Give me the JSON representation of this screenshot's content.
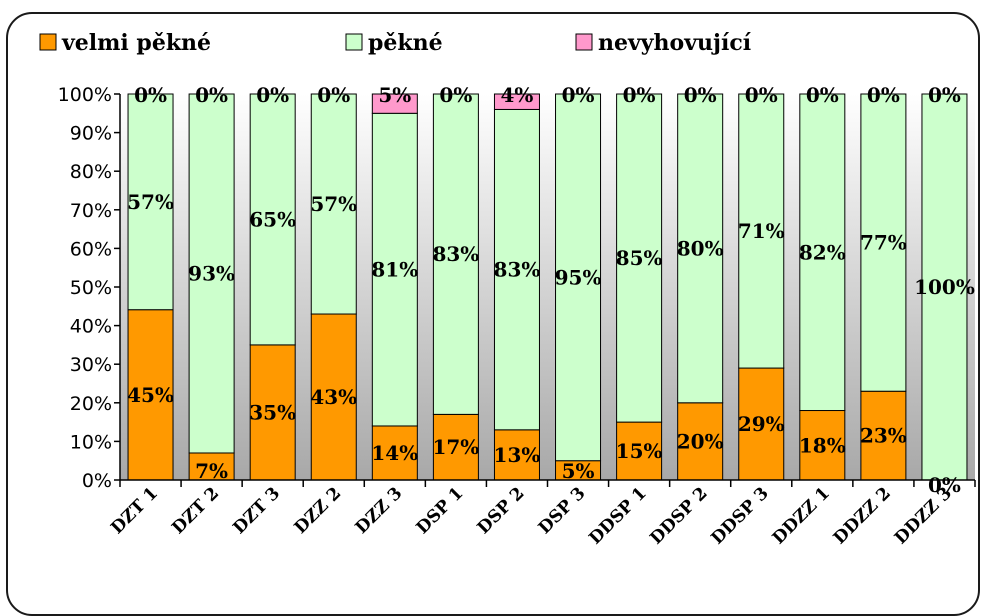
{
  "chart_data": {
    "type": "bar",
    "stacked": true,
    "percent_stacked": true,
    "categories": [
      "DZT 1",
      "DZT 2",
      "DZT 3",
      "DZZ 2",
      "DZZ 3",
      "DSP 1",
      "DSP 2",
      "DSP 3",
      "DDSP 1",
      "DDSP 2",
      "DDSP 3",
      "DDZZ 1",
      "DDZZ 2",
      "DDZZ 3"
    ],
    "series": [
      {
        "name": "velmi pěkné",
        "color": "#ff9900",
        "values": [
          45,
          7,
          35,
          43,
          14,
          17,
          13,
          5,
          15,
          20,
          29,
          18,
          23,
          0
        ]
      },
      {
        "name": "pěkné",
        "color": "#ccffcc",
        "values": [
          57,
          93,
          65,
          57,
          81,
          83,
          83,
          95,
          85,
          80,
          71,
          82,
          77,
          100
        ]
      },
      {
        "name": "nevyhovující",
        "color": "#ff99cc",
        "values": [
          0,
          0,
          0,
          0,
          5,
          0,
          4,
          0,
          0,
          0,
          0,
          0,
          0,
          0
        ]
      }
    ],
    "data_labels": {
      "velmi pěkné": [
        "45%",
        "7%",
        "35%",
        "43%",
        "14%",
        "17%",
        "13%",
        "5%",
        "15%",
        "20%",
        "29%",
        "18%",
        "23%",
        "0%"
      ],
      "pěkné": [
        "57%",
        "93%",
        "65%",
        "57%",
        "81%",
        "83%",
        "83%",
        "95%",
        "85%",
        "80%",
        "71%",
        "82%",
        "77%",
        "100%"
      ],
      "nevyhovující": [
        "0%",
        "0%",
        "0%",
        "0%",
        "5%",
        "0%",
        "4%",
        "0%",
        "0%",
        "0%",
        "0%",
        "0%",
        "0%",
        "0%"
      ]
    },
    "y_ticks": [
      "0%",
      "10%",
      "20%",
      "30%",
      "40%",
      "50%",
      "60%",
      "70%",
      "80%",
      "90%",
      "100%"
    ],
    "ylim": [
      0,
      100
    ],
    "grid": false,
    "legend_position": "top"
  }
}
